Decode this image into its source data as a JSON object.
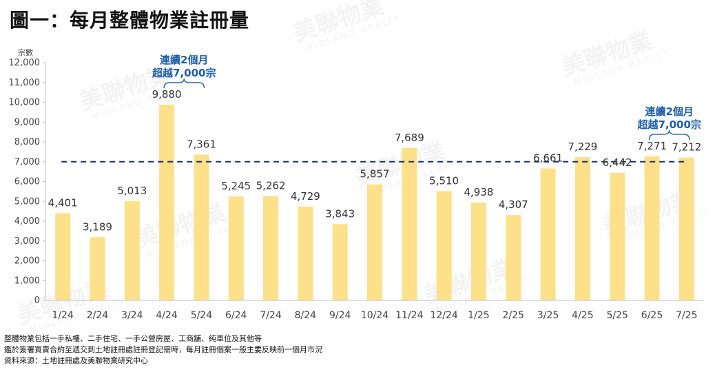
{
  "title": "圖一：每月整體物業註冊量",
  "chart_data": {
    "type": "bar",
    "ylabel": "宗數",
    "ylim": [
      0,
      12000
    ],
    "yticks": [
      0,
      1000,
      2000,
      3000,
      4000,
      5000,
      6000,
      7000,
      8000,
      9000,
      10000,
      11000,
      12000
    ],
    "ytick_labels": [
      "0",
      "1,000",
      "2,000",
      "3,000",
      "4,000",
      "5,000",
      "6,000",
      "7,000",
      "8,000",
      "9,000",
      "10,000",
      "11,000",
      "12,000"
    ],
    "categories": [
      "1/24",
      "2/24",
      "3/24",
      "4/24",
      "5/24",
      "6/24",
      "7/24",
      "8/24",
      "9/24",
      "10/24",
      "11/24",
      "12/24",
      "1/25",
      "2/25",
      "3/25",
      "4/25",
      "5/25",
      "6/25",
      "7/25"
    ],
    "values": [
      4401,
      3189,
      5013,
      9880,
      7361,
      5245,
      5262,
      4729,
      3843,
      5857,
      7689,
      5510,
      4938,
      4307,
      6661,
      7229,
      6442,
      7271,
      7212
    ],
    "value_labels": [
      "4,401",
      "3,189",
      "5,013",
      "9,880",
      "7,361",
      "5,245",
      "5,262",
      "4,729",
      "3,843",
      "5,857",
      "7,689",
      "5,510",
      "4,938",
      "4,307",
      "6,661",
      "7,229",
      "6,442",
      "7,271",
      "7,212"
    ],
    "reference_line": {
      "value": 7000,
      "style": "dashed",
      "color": "#1a2f5a"
    },
    "bar_color": "#fde08a",
    "grid": false,
    "annotations": [
      {
        "text_line1": "連續2個月",
        "text_line2": "超越7,000宗",
        "span": [
          "4/24",
          "5/24"
        ],
        "color": "#1f5fa8"
      },
      {
        "text_line1": "連續2個月",
        "text_line2": "超越7,000宗",
        "span": [
          "6/25",
          "7/25"
        ],
        "color": "#1f5fa8"
      }
    ]
  },
  "watermark": {
    "text": "美聯物業",
    "subtext": "MIDLAND REALTY"
  },
  "footnotes": [
    "整體物業包括一手私樓、二手住宅、一手公營房屋、工商舖、純車位及其他等",
    "鑑於簽署買賣合約至遞交到土地註冊處註冊登記需時，每月註冊個案一般主要反映前一個月市況",
    "資料來源：土地註冊處及美聯物業研究中心"
  ]
}
